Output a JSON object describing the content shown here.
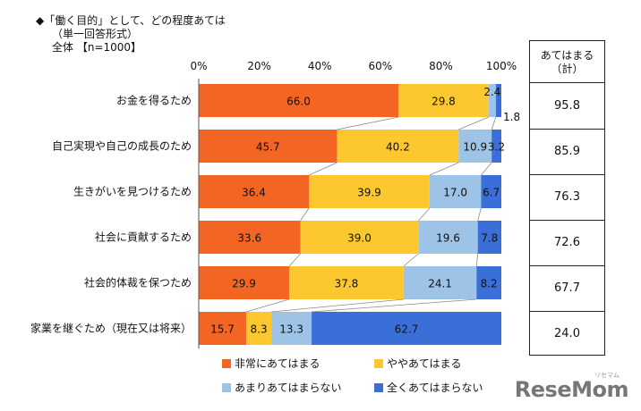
{
  "header": {
    "title": "◆「働く目的」として、どの程度あては",
    "subtitle": "（単一回答形式）",
    "scope": "全体 【n=1000】"
  },
  "summary": {
    "heading_line1": "あてはまる",
    "heading_line2": "（計）",
    "values": [
      "95.8",
      "85.9",
      "76.3",
      "72.6",
      "67.7",
      "24.0"
    ]
  },
  "logo": {
    "text": "ReseMom",
    "sub": "リセマム"
  },
  "chart_data": {
    "type": "bar",
    "orientation": "horizontal",
    "stacked": true,
    "xlim": [
      0,
      100
    ],
    "x_ticks": [
      "0%",
      "20%",
      "40%",
      "60%",
      "80%",
      "100%"
    ],
    "categories": [
      "お金を得るため",
      "自己実現や自己の成長のため",
      "生きがいを見つけるため",
      "社会に貢献するため",
      "社会的体裁を保つため",
      "家業を継ぐため（現在又は将来）"
    ],
    "series": [
      {
        "name": "非常にあてはまる",
        "color": "#F26522",
        "values": [
          66.0,
          45.7,
          36.4,
          33.6,
          29.9,
          15.7
        ],
        "labels": [
          "66.0",
          "45.7",
          "36.4",
          "33.6",
          "29.9",
          "15.7"
        ]
      },
      {
        "name": "ややあてはまる",
        "color": "#FDC82F",
        "values": [
          29.8,
          40.2,
          39.9,
          39.0,
          37.8,
          8.3
        ],
        "labels": [
          "29.8",
          "40.2",
          "39.9",
          "39.0",
          "37.8",
          "8.3"
        ]
      },
      {
        "name": "あまりあてはまらない",
        "color": "#9DC3E6",
        "values": [
          2.4,
          10.9,
          17.0,
          19.6,
          24.1,
          13.3
        ],
        "labels": [
          "2.4",
          "10.9",
          "17.0",
          "19.6",
          "24.1",
          "13.3"
        ]
      },
      {
        "name": "全くあてはまらない",
        "color": "#3B6FD8",
        "values": [
          1.8,
          3.2,
          6.7,
          7.8,
          8.2,
          62.7
        ],
        "labels": [
          "1.8",
          "3.2",
          "6.7",
          "7.8",
          "8.2",
          "62.7"
        ]
      }
    ],
    "legend_position": "bottom",
    "connector_lines": true
  }
}
